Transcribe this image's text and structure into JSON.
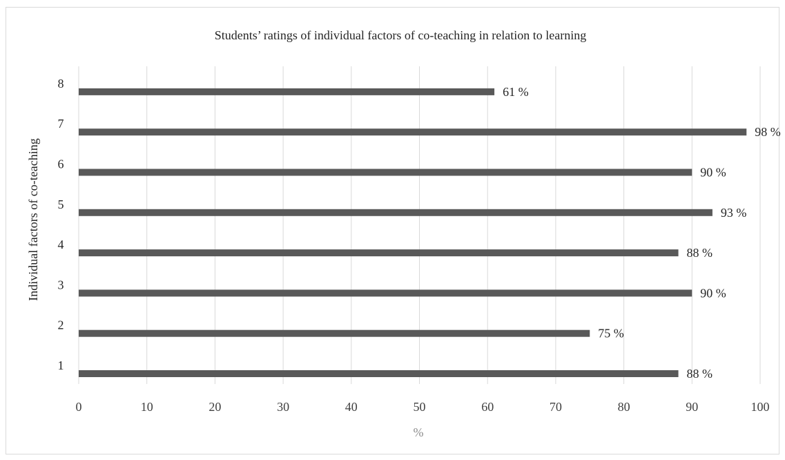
{
  "chart_data": {
    "type": "bar",
    "orientation": "horizontal",
    "title": "Students’ ratings of individual  factors of co-teaching in relation to learning",
    "xlabel": "%",
    "ylabel": "Individual  factors of co-teaching",
    "categories": [
      "1",
      "2",
      "3",
      "4",
      "5",
      "6",
      "7",
      "8"
    ],
    "values": [
      88,
      75,
      90,
      88,
      93,
      90,
      98,
      61
    ],
    "data_labels": [
      "88 %",
      "75 %",
      "90 %",
      "88 %",
      "93 %",
      "90 %",
      "98 %",
      "61 %"
    ],
    "xlim": [
      0,
      100
    ],
    "xticks": [
      "0",
      "10",
      "20",
      "30",
      "40",
      "50",
      "60",
      "70",
      "80",
      "90",
      "100"
    ],
    "grid": true,
    "legend": "none",
    "bar_color": "#595959"
  }
}
